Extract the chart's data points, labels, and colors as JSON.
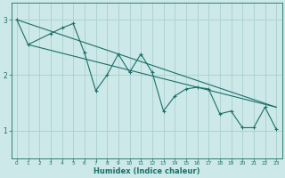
{
  "bg_color": "#cce8e8",
  "grid_color": "#aad0d0",
  "line_color": "#1a7068",
  "xlim": [
    -0.5,
    23.5
  ],
  "ylim": [
    0.5,
    3.3
  ],
  "xlabel": "Humidex (Indice chaleur)",
  "xticks": [
    0,
    1,
    2,
    3,
    4,
    5,
    6,
    7,
    8,
    9,
    10,
    11,
    12,
    13,
    14,
    15,
    16,
    17,
    18,
    19,
    20,
    21,
    22,
    23
  ],
  "yticks": [
    1,
    2,
    3
  ],
  "data_line": {
    "x": [
      0,
      1,
      3,
      4,
      5,
      6,
      7,
      8,
      9,
      10,
      11,
      12,
      13,
      14,
      15,
      16,
      17,
      18,
      19,
      20,
      21,
      22,
      23
    ],
    "y": [
      3.0,
      2.55,
      2.75,
      2.85,
      2.93,
      2.4,
      1.72,
      2.0,
      2.38,
      2.05,
      2.38,
      2.05,
      1.35,
      1.62,
      1.75,
      1.78,
      1.75,
      1.3,
      1.35,
      1.05,
      1.05,
      1.42,
      1.02
    ]
  },
  "trend_line1": {
    "x": [
      0,
      23
    ],
    "y": [
      3.0,
      1.42
    ]
  },
  "trend_line2": {
    "x": [
      1,
      23
    ],
    "y": [
      2.55,
      1.42
    ]
  }
}
